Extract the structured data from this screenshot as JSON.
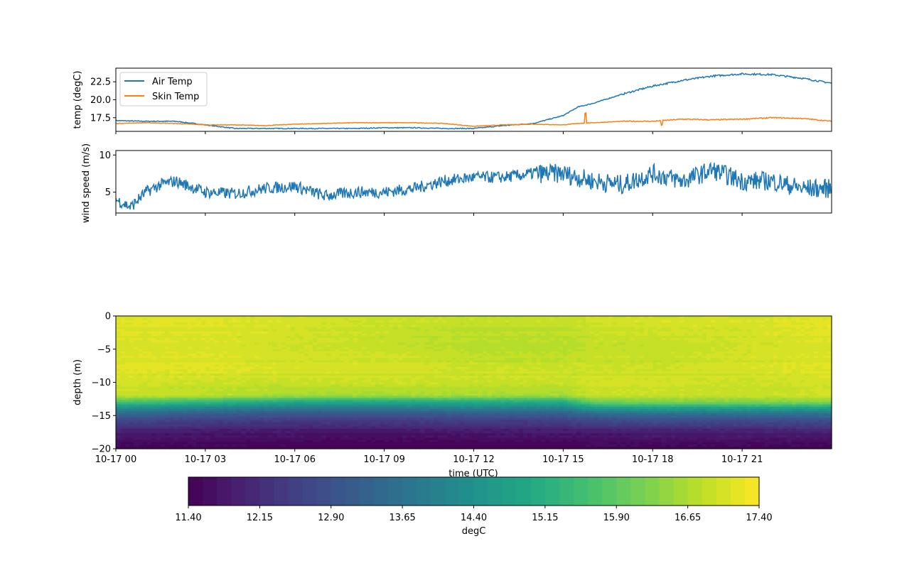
{
  "chart_data": [
    {
      "type": "line",
      "ylabel": "temp (degC)",
      "ylim": [
        15.6,
        24.4
      ],
      "yticks": [
        "17.5",
        "20.0",
        "22.5"
      ],
      "legend": {
        "placement": "top-left",
        "entries": [
          "Air Temp",
          "Skin Temp"
        ]
      },
      "x_hours": [
        0,
        1,
        2,
        3,
        4,
        5,
        6,
        7,
        8,
        9,
        10,
        11,
        12,
        13,
        14,
        15,
        15.5,
        16,
        17,
        18,
        19,
        20,
        21,
        22,
        23,
        24
      ],
      "series": [
        {
          "name": "Air Temp",
          "color": "#1f77b4",
          "values": [
            17.1,
            17.0,
            17.0,
            16.5,
            16.0,
            16.0,
            16.0,
            16.0,
            16.0,
            16.1,
            16.1,
            16.0,
            16.0,
            16.4,
            16.7,
            17.8,
            19.0,
            19.5,
            20.8,
            21.9,
            22.7,
            23.3,
            23.6,
            23.5,
            23.0,
            22.3
          ]
        },
        {
          "name": "Skin Temp",
          "color": "#ff7f0e",
          "values": [
            16.7,
            16.8,
            16.7,
            16.5,
            16.5,
            16.4,
            16.6,
            16.7,
            16.8,
            16.8,
            16.8,
            16.7,
            16.3,
            16.5,
            16.6,
            16.5,
            16.7,
            16.8,
            17.0,
            17.0,
            17.3,
            17.2,
            17.3,
            17.5,
            17.4,
            17.0
          ]
        }
      ]
    },
    {
      "type": "line",
      "ylabel": "wind speed (m/s)",
      "ylim": [
        2.2,
        10.6
      ],
      "yticks": [
        "5",
        "10"
      ],
      "x_hours": [
        0,
        0.5,
        1,
        1.5,
        2,
        3,
        4,
        5,
        6,
        7,
        8,
        9,
        10,
        11,
        12,
        13,
        14,
        15,
        16,
        17,
        18,
        19,
        20,
        21,
        22,
        23,
        24
      ],
      "series": [
        {
          "name": "wind speed",
          "color": "#1f77b4",
          "values": [
            4.0,
            3.0,
            5.0,
            6.0,
            6.5,
            5.0,
            4.8,
            5.5,
            5.8,
            4.5,
            5.0,
            5.0,
            5.5,
            6.5,
            7.0,
            7.0,
            7.5,
            7.5,
            6.5,
            6.0,
            7.5,
            6.5,
            8.0,
            6.5,
            6.5,
            5.5,
            5.5
          ]
        }
      ]
    },
    {
      "type": "heatmap",
      "ylabel": "depth (m)",
      "xlabel": "time (UTC)",
      "ylim": [
        -20,
        0
      ],
      "yticks": [
        "0",
        "−5",
        "−10",
        "−15",
        "−20"
      ],
      "xticks": [
        "10-17 00",
        "10-17 03",
        "10-17 06",
        "10-17 09",
        "10-17 12",
        "10-17 15",
        "10-17 18",
        "10-17 21"
      ],
      "depths": [
        0,
        -2,
        -4,
        -6,
        -8,
        -10,
        -12,
        -13,
        -14,
        -15,
        -16,
        -17,
        -18,
        -19,
        -20
      ],
      "x_hours": [
        0,
        3,
        6,
        9,
        12,
        15,
        16,
        18,
        21,
        24
      ],
      "values": [
        [
          17.1,
          17.1,
          17.0,
          16.9,
          16.9,
          16.9,
          17.0,
          17.0,
          17.0,
          17.1
        ],
        [
          17.1,
          17.1,
          17.0,
          16.9,
          16.8,
          16.8,
          16.9,
          17.0,
          17.0,
          17.2
        ],
        [
          17.1,
          17.1,
          17.0,
          16.9,
          16.8,
          16.8,
          16.9,
          16.9,
          17.0,
          17.1
        ],
        [
          17.1,
          17.1,
          17.0,
          17.0,
          16.8,
          16.8,
          16.9,
          16.9,
          17.0,
          17.1
        ],
        [
          17.1,
          17.1,
          17.0,
          17.0,
          16.9,
          16.9,
          16.9,
          16.9,
          17.0,
          17.1
        ],
        [
          17.0,
          16.9,
          16.9,
          16.9,
          16.9,
          16.9,
          17.0,
          17.0,
          16.9,
          17.0
        ],
        [
          16.9,
          16.8,
          16.6,
          16.6,
          16.6,
          16.6,
          16.9,
          16.9,
          16.9,
          17.0
        ],
        [
          15.6,
          15.3,
          14.9,
          14.9,
          15.0,
          15.0,
          16.0,
          16.2,
          16.2,
          16.3
        ],
        [
          14.2,
          13.9,
          13.7,
          13.7,
          13.9,
          13.9,
          14.5,
          14.6,
          14.6,
          14.6
        ],
        [
          13.3,
          13.0,
          12.9,
          12.9,
          13.0,
          13.0,
          13.3,
          13.4,
          13.4,
          13.4
        ],
        [
          12.6,
          12.4,
          12.3,
          12.3,
          12.4,
          12.4,
          12.6,
          12.7,
          12.6,
          12.7
        ],
        [
          12.1,
          12.0,
          11.9,
          11.9,
          12.0,
          12.0,
          12.1,
          12.1,
          12.1,
          12.2
        ],
        [
          11.8,
          11.7,
          11.7,
          11.6,
          11.7,
          11.7,
          11.7,
          11.8,
          11.8,
          11.8
        ],
        [
          11.6,
          11.6,
          11.5,
          11.5,
          11.5,
          11.5,
          11.6,
          11.6,
          11.6,
          11.6
        ],
        [
          11.5,
          11.5,
          11.5,
          11.4,
          11.5,
          11.5,
          11.5,
          11.5,
          11.5,
          11.5
        ]
      ]
    }
  ],
  "colorbar": {
    "label": "degC",
    "min": 11.4,
    "max": 17.4,
    "levels": 40,
    "ticks": [
      "11.40",
      "12.15",
      "12.90",
      "13.65",
      "14.40",
      "15.15",
      "15.90",
      "16.65",
      "17.40"
    ]
  }
}
